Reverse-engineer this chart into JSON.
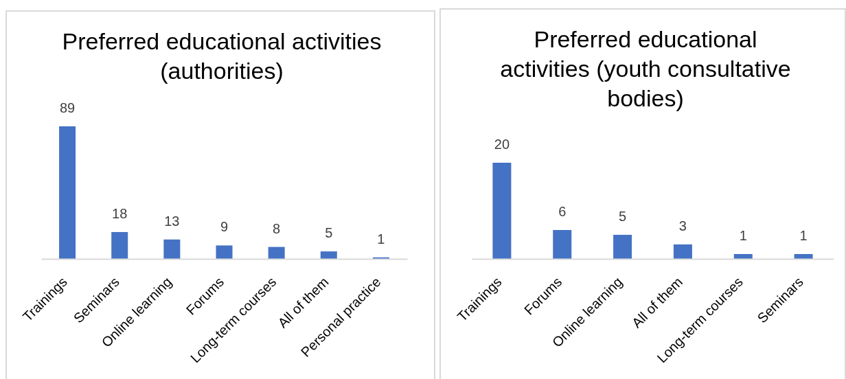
{
  "chart_data": [
    {
      "type": "bar",
      "title": "Preferred educational activities (authorities)",
      "categories": [
        "Trainings",
        "Seminars",
        "Online learning",
        "Forums",
        "Long-term courses",
        "All of them",
        "Personal practice"
      ],
      "values": [
        89,
        18,
        13,
        9,
        8,
        5,
        1
      ],
      "color": "#4472c4",
      "data_labels": true
    },
    {
      "type": "bar",
      "title": "Preferred educational activities (youth consultative bodies)",
      "categories": [
        "Trainings",
        "Forums",
        "Online learning",
        "All of them",
        "Long-term courses",
        "Seminars"
      ],
      "values": [
        20,
        6,
        5,
        3,
        1,
        1
      ],
      "color": "#4472c4",
      "data_labels": true
    }
  ]
}
